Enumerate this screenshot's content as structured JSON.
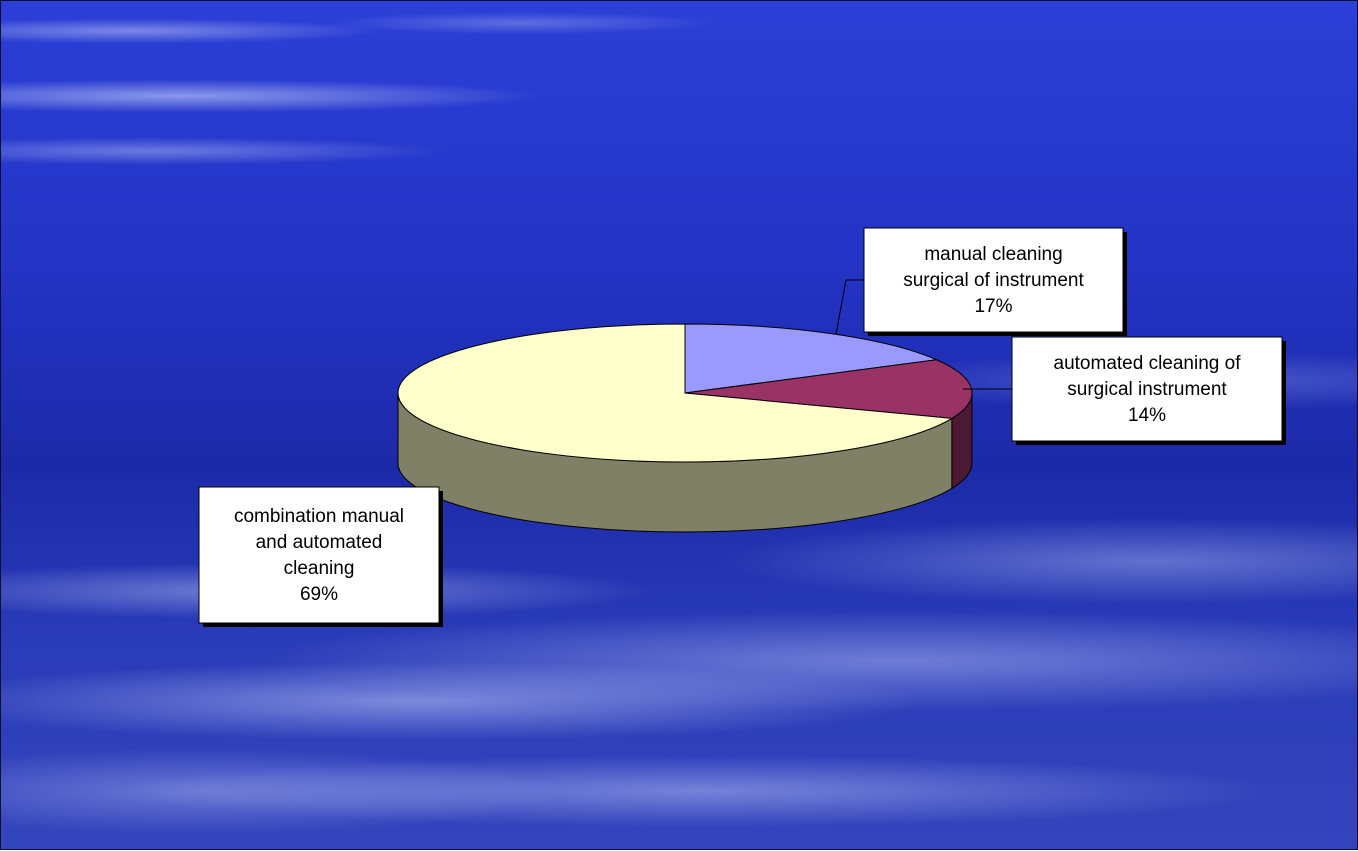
{
  "chart_data": {
    "type": "pie",
    "style": "3d",
    "slices": [
      {
        "label_lines": [
          "manual cleaning",
          "surgical of instrument"
        ],
        "value": 17,
        "value_label": "17%",
        "top_color": "#9999ff",
        "side_color": "#4c4c80"
      },
      {
        "label_lines": [
          "automated cleaning of",
          "surgical instrument"
        ],
        "value": 14,
        "value_label": "14%",
        "top_color": "#993366",
        "side_color": "#4c1933"
      },
      {
        "label_lines": [
          "combination manual",
          "and automated",
          "cleaning"
        ],
        "value": 69,
        "value_label": "69%",
        "top_color": "#ffffcc",
        "side_color": "#808066"
      }
    ]
  }
}
